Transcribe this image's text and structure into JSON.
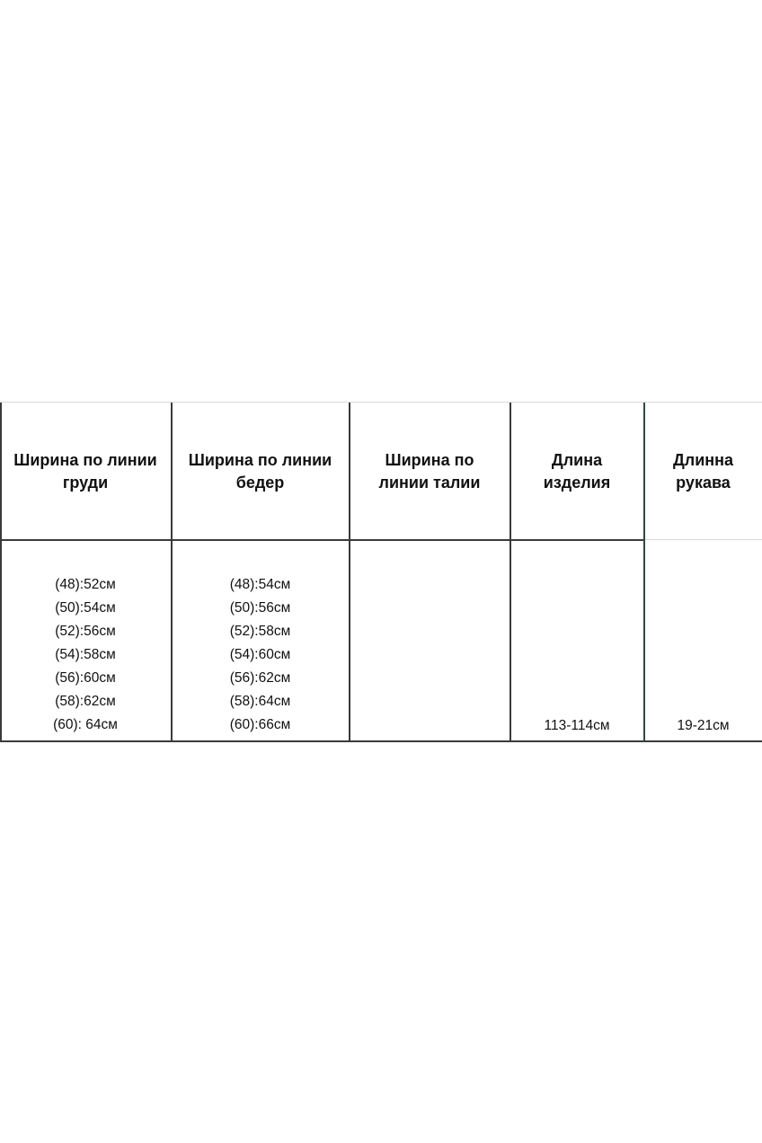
{
  "table": {
    "headers": [
      "Ширина по линии\nгруди",
      "Ширина по линии\nбедер",
      "Ширина по\nлинии талии",
      "Длина\nизделия",
      "Длинна\nрукава"
    ],
    "chest": [
      "(48):52см",
      "(50):54см",
      "(52):56см",
      "(54):58см",
      "(56):60см",
      "(58):62см",
      "(60): 64см"
    ],
    "hips": [
      "(48):54см",
      "(50):56см",
      "(52):58см",
      "(54):60см",
      "(56):62см",
      "(58):64см",
      "(60):66см"
    ],
    "waist": "",
    "length": "113-114см",
    "sleeve": "19-21см"
  }
}
